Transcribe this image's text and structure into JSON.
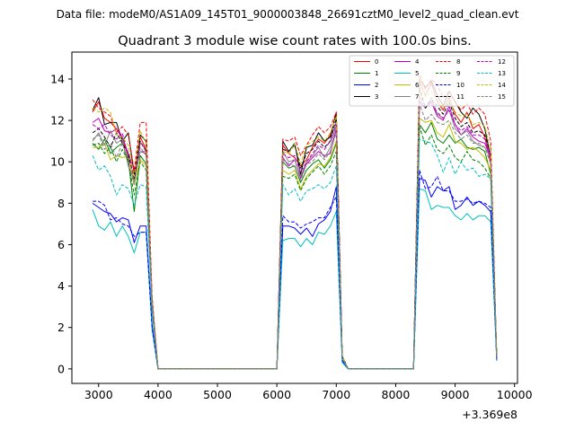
{
  "chart_data": {
    "type": "line",
    "suptitle": "Data file: modeM0/AS1A09_145T01_9000003848_26691cztM0_level2_quad_clean.evt",
    "title": "Quadrant 3 module wise count rates with 100.0s bins.",
    "xlabel": "",
    "ylabel": "",
    "x_offset_label": "+3.369e8",
    "xlim": [
      2550,
      10050
    ],
    "ylim": [
      -0.7,
      15.3
    ],
    "xticks": [
      3000,
      4000,
      5000,
      6000,
      7000,
      8000,
      9000,
      10000
    ],
    "xtick_labels": [
      "3000",
      "4000",
      "5000",
      "6000",
      "7000",
      "8000",
      "9000",
      "10000"
    ],
    "yticks": [
      0,
      2,
      4,
      6,
      8,
      10,
      12,
      14
    ],
    "ytick_labels": [
      "0",
      "2",
      "4",
      "6",
      "8",
      "10",
      "12",
      "14"
    ],
    "legend_position": "upper right",
    "legend_columns": 4,
    "x": [
      2900,
      3000,
      3100,
      3200,
      3300,
      3400,
      3500,
      3600,
      3700,
      3800,
      3900,
      4000,
      6000,
      6100,
      6200,
      6300,
      6400,
      6500,
      6600,
      6700,
      6800,
      6900,
      7000,
      7100,
      7200,
      8300,
      8400,
      8500,
      8600,
      8700,
      8800,
      8900,
      9000,
      9100,
      9200,
      9300,
      9400,
      9500,
      9600,
      9700
    ],
    "series": [
      {
        "name": "0",
        "color": "#ff0000",
        "dash": "solid",
        "values": [
          12.4,
          12.9,
          12.1,
          11.9,
          11.6,
          11.1,
          10.3,
          8.9,
          11.2,
          10.6,
          3.2,
          0,
          0,
          10.8,
          10.4,
          10.2,
          9.8,
          10.1,
          10.7,
          11.1,
          10.9,
          11.3,
          12.3,
          0.6,
          0,
          0,
          13.9,
          13.2,
          13.8,
          12.9,
          12.5,
          13.1,
          12.3,
          11.9,
          12.4,
          11.6,
          11.8,
          11.2,
          9.9,
          0.5
        ]
      },
      {
        "name": "1",
        "color": "#008000",
        "dash": "solid",
        "values": [
          10.9,
          10.6,
          11.1,
          10.4,
          10.7,
          10.9,
          10.1,
          7.6,
          10.3,
          9.9,
          3.0,
          0,
          0,
          10.0,
          9.7,
          9.8,
          9.0,
          9.6,
          9.9,
          10.1,
          9.7,
          10.1,
          10.9,
          0.5,
          0,
          0,
          11.8,
          11.4,
          11.9,
          11.1,
          10.9,
          11.3,
          10.9,
          11.1,
          10.7,
          10.6,
          10.7,
          10.5,
          9.4,
          0.5
        ]
      },
      {
        "name": "2",
        "color": "#0000ff",
        "dash": "solid",
        "values": [
          8.0,
          7.8,
          7.6,
          7.5,
          7.1,
          7.3,
          7.2,
          6.1,
          6.9,
          6.9,
          2.1,
          0,
          0,
          6.9,
          6.9,
          6.8,
          6.5,
          6.8,
          6.4,
          7.0,
          7.2,
          7.6,
          8.8,
          0.4,
          0,
          0,
          9.2,
          9.1,
          8.3,
          8.8,
          8.6,
          8.8,
          7.7,
          7.9,
          8.3,
          7.9,
          8.1,
          7.9,
          7.6,
          0.4
        ]
      },
      {
        "name": "3",
        "color": "#000000",
        "dash": "solid",
        "values": [
          12.5,
          13.1,
          11.8,
          11.9,
          11.9,
          11.0,
          11.4,
          9.4,
          11.3,
          11.0,
          3.3,
          0,
          0,
          11.0,
          10.5,
          10.9,
          9.4,
          10.7,
          10.8,
          11.4,
          11.0,
          11.2,
          12.4,
          0.6,
          0,
          0,
          14.0,
          13.6,
          13.9,
          13.2,
          12.7,
          13.4,
          12.9,
          12.4,
          12.1,
          12.6,
          12.3,
          11.6,
          10.2,
          0.5
        ]
      },
      {
        "name": "4",
        "color": "#bf00bf",
        "dash": "solid",
        "values": [
          11.9,
          12.1,
          11.5,
          11.4,
          11.6,
          11.2,
          10.4,
          9.6,
          10.5,
          10.4,
          3.1,
          0,
          0,
          10.2,
          9.8,
          10.1,
          9.2,
          9.9,
          10.2,
          10.5,
          10.3,
          10.4,
          11.6,
          0.5,
          0,
          0,
          12.9,
          12.6,
          12.9,
          12.2,
          12.0,
          12.7,
          11.8,
          11.3,
          11.6,
          11.2,
          11.0,
          10.9,
          10.2,
          0.5
        ]
      },
      {
        "name": "5",
        "color": "#00bfbf",
        "dash": "solid",
        "values": [
          7.7,
          6.9,
          6.7,
          7.1,
          6.4,
          6.9,
          6.4,
          5.6,
          6.6,
          6.6,
          1.9,
          0,
          0,
          6.2,
          6.3,
          6.3,
          5.9,
          6.3,
          6.0,
          6.6,
          6.5,
          6.9,
          7.6,
          0.3,
          0,
          0,
          8.7,
          8.6,
          7.7,
          7.9,
          7.8,
          7.8,
          7.4,
          7.2,
          7.5,
          7.2,
          7.4,
          7.4,
          7.1,
          0.4
        ]
      },
      {
        "name": "6",
        "color": "#bfbf00",
        "dash": "solid",
        "values": [
          10.7,
          10.7,
          10.9,
          10.1,
          10.3,
          10.2,
          10.3,
          8.9,
          10.1,
          9.8,
          3.0,
          0,
          0,
          9.6,
          9.4,
          9.6,
          8.7,
          9.3,
          9.6,
          9.9,
          9.8,
          10.2,
          11.0,
          0.5,
          0,
          0,
          12.1,
          11.9,
          12.0,
          11.4,
          11.2,
          11.8,
          11.0,
          10.9,
          10.6,
          10.7,
          10.5,
          10.2,
          9.6,
          0.5
        ]
      },
      {
        "name": "7",
        "color": "#808080",
        "dash": "solid",
        "values": [
          11.0,
          11.4,
          10.8,
          11.5,
          10.9,
          11.1,
          9.8,
          9.1,
          10.5,
          10.5,
          3.1,
          0,
          0,
          10.5,
          10.0,
          10.1,
          9.3,
          10.0,
          10.3,
          10.7,
          10.2,
          10.7,
          11.8,
          0.5,
          0,
          0,
          13.0,
          12.6,
          13.1,
          12.3,
          12.1,
          12.5,
          11.6,
          11.3,
          11.5,
          11.0,
          10.8,
          10.7,
          10.2,
          0.5
        ]
      },
      {
        "name": "8",
        "color": "#ff0000",
        "dash": "dashed",
        "values": [
          13.0,
          12.6,
          12.4,
          12.2,
          11.4,
          11.7,
          11.3,
          9.6,
          11.9,
          11.9,
          3.5,
          0,
          0,
          11.1,
          11.0,
          11.2,
          10.3,
          10.8,
          11.3,
          11.7,
          11.4,
          11.7,
          12.4,
          0.6,
          0,
          0,
          14.2,
          13.5,
          14.0,
          13.7,
          13.1,
          13.4,
          12.9,
          12.5,
          12.8,
          12.3,
          12.6,
          12.3,
          11.0,
          0.6
        ]
      },
      {
        "name": "9",
        "color": "#008000",
        "dash": "dashed",
        "values": [
          10.8,
          10.9,
          10.4,
          10.7,
          10.0,
          10.6,
          10.0,
          8.4,
          10.0,
          9.6,
          2.9,
          0,
          0,
          9.3,
          9.2,
          9.4,
          8.6,
          9.2,
          9.5,
          9.8,
          9.4,
          9.8,
          10.5,
          0.5,
          0,
          0,
          11.7,
          10.8,
          11.3,
          10.6,
          10.4,
          10.8,
          10.2,
          10.0,
          10.5,
          10.1,
          10.0,
          9.7,
          9.2,
          0.5
        ]
      },
      {
        "name": "10",
        "color": "#0000ff",
        "dash": "dashed",
        "values": [
          8.1,
          8.1,
          7.9,
          7.2,
          7.3,
          7.0,
          6.9,
          6.4,
          6.6,
          6.6,
          2.0,
          0,
          0,
          7.4,
          7.1,
          7.1,
          6.8,
          7.0,
          7.1,
          7.3,
          7.3,
          7.8,
          8.3,
          0.4,
          0,
          0,
          9.6,
          8.7,
          8.8,
          9.3,
          8.6,
          8.6,
          8.1,
          8.1,
          8.2,
          8.0,
          8.1,
          8.0,
          7.8,
          0.4
        ]
      },
      {
        "name": "11",
        "color": "#000000",
        "dash": "dashed",
        "values": [
          11.4,
          11.6,
          11.2,
          10.7,
          11.4,
          10.9,
          10.4,
          9.2,
          11.0,
          10.5,
          3.2,
          0,
          0,
          10.6,
          10.5,
          10.8,
          9.7,
          10.4,
          10.6,
          11.0,
          10.7,
          11.0,
          12.1,
          0.6,
          0,
          0,
          13.6,
          12.6,
          13.0,
          12.7,
          12.3,
          12.9,
          12.1,
          11.7,
          11.9,
          11.4,
          11.5,
          11.3,
          10.3,
          0.5
        ]
      },
      {
        "name": "12",
        "color": "#bf00bf",
        "dash": "dashed",
        "values": [
          11.8,
          11.6,
          11.8,
          11.3,
          11.1,
          11.4,
          10.2,
          9.3,
          10.9,
          10.6,
          3.2,
          0,
          0,
          10.4,
          10.2,
          10.3,
          9.5,
          10.0,
          10.4,
          10.8,
          10.6,
          11.0,
          11.9,
          0.5,
          0,
          0,
          13.2,
          12.7,
          12.8,
          12.4,
          12.1,
          12.5,
          11.8,
          11.5,
          11.7,
          11.3,
          11.3,
          11.1,
          10.3,
          0.5
        ]
      },
      {
        "name": "13",
        "color": "#00bfbf",
        "dash": "dashed",
        "values": [
          10.3,
          9.6,
          9.8,
          9.3,
          8.4,
          8.9,
          8.7,
          7.9,
          8.9,
          8.8,
          2.7,
          0,
          0,
          8.9,
          8.4,
          8.7,
          8.1,
          8.6,
          8.7,
          8.9,
          8.7,
          9.0,
          9.8,
          0.5,
          0,
          0,
          11.1,
          11.0,
          10.9,
          10.3,
          9.5,
          10.2,
          9.4,
          10.0,
          9.6,
          9.7,
          9.3,
          9.4,
          9.2,
          0.5
        ]
      },
      {
        "name": "14",
        "color": "#bfbf00",
        "dash": "dashed",
        "values": [
          12.6,
          12.4,
          12.6,
          12.4,
          11.3,
          11.2,
          10.8,
          9.3,
          11.5,
          10.9,
          3.3,
          0,
          0,
          10.5,
          10.4,
          10.9,
          9.9,
          10.8,
          11.0,
          11.2,
          11.0,
          11.4,
          12.2,
          0.6,
          0,
          0,
          14.1,
          13.1,
          13.4,
          13.0,
          12.6,
          13.0,
          12.4,
          12.2,
          12.3,
          11.8,
          11.9,
          11.7,
          10.6,
          0.6
        ]
      },
      {
        "name": "15",
        "color": "#808080",
        "dash": "dashed",
        "values": [
          11.1,
          11.3,
          10.6,
          10.9,
          10.2,
          10.9,
          9.9,
          8.9,
          10.7,
          10.3,
          3.1,
          0,
          0,
          10.1,
          9.9,
          9.8,
          9.1,
          9.9,
          10.0,
          10.4,
          10.1,
          10.5,
          11.4,
          0.5,
          0,
          0,
          12.8,
          12.0,
          12.3,
          11.9,
          11.8,
          12.0,
          11.4,
          11.1,
          11.3,
          10.9,
          10.9,
          10.7,
          9.9,
          0.5
        ]
      }
    ]
  }
}
